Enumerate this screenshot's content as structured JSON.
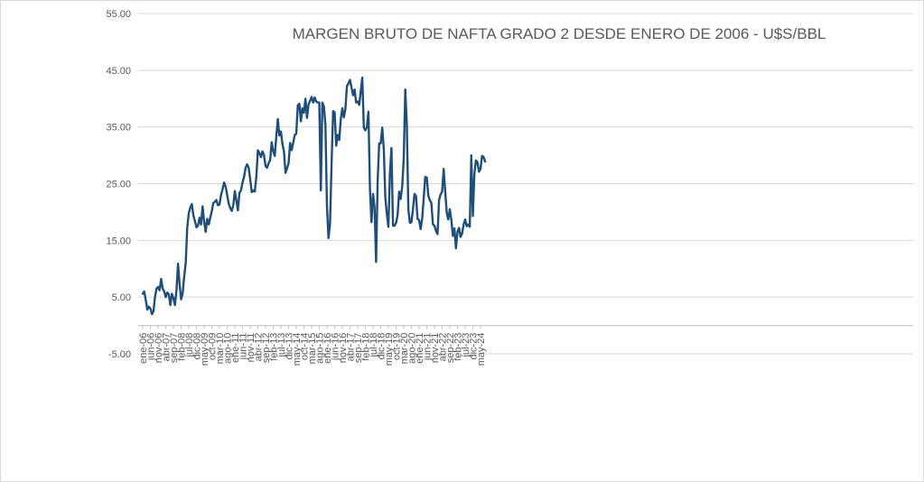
{
  "chart_data": {
    "type": "line",
    "title": "MARGEN BRUTO DE NAFTA GRADO 2 DESDE ENERO DE 2006 - U$S/BBL",
    "xlabel": "",
    "ylabel": "",
    "ylim": [
      -5,
      55
    ],
    "yticks": [
      "55.00",
      "45.00",
      "35.00",
      "25.00",
      "15.00",
      "5.00",
      "-5.00"
    ],
    "ytick_values": [
      55,
      45,
      35,
      25,
      15,
      5,
      -5
    ],
    "x_tick_labels": [
      "ene-06",
      "jun-06",
      "nov-06",
      "abr-07",
      "sep-07",
      "feb-08",
      "jul-08",
      "dic-08",
      "may-09",
      "oct-09",
      "mar-10",
      "ago-10",
      "ene-11",
      "jun-11",
      "nov-11",
      "abr-12",
      "sep-12",
      "feb-13",
      "jul-13",
      "dic-13",
      "may-14",
      "oct-14",
      "mar-15",
      "ago-15",
      "ene-16",
      "jun-16",
      "nov-16",
      "abr-17",
      "sep-17",
      "feb-18",
      "jul-18",
      "dic-18",
      "may-19",
      "oct-19",
      "mar-20",
      "ago-20",
      "ene-21",
      "jun-21",
      "nov-21",
      "abr-22",
      "sep-22",
      "feb-23",
      "jul-23",
      "dic-23",
      "may-24"
    ],
    "gridlines": true,
    "legend": "none",
    "series": [
      {
        "color": "#1f4e79",
        "start": "ene-06",
        "frequency": "monthly",
        "values": [
          5.6,
          6.0,
          4.5,
          2.8,
          3.3,
          3.0,
          2.0,
          2.5,
          5.0,
          6.5,
          6.8,
          6.2,
          8.2,
          6.5,
          6.0,
          5.0,
          5.8,
          5.5,
          3.6,
          5.6,
          4.8,
          3.6,
          6.2,
          10.9,
          7.3,
          4.6,
          5.6,
          8.6,
          11.0,
          17.2,
          19.8,
          20.8,
          21.4,
          19.4,
          18.4,
          17.3,
          17.6,
          19.0,
          17.8,
          21.0,
          18.3,
          16.5,
          18.8,
          17.8,
          19.0,
          20.2,
          21.6,
          21.8,
          22.1,
          21.2,
          21.3,
          23.0,
          24.0,
          25.2,
          24.5,
          23.0,
          21.5,
          20.7,
          20.2,
          21.2,
          23.7,
          22.0,
          20.3,
          23.4,
          23.8,
          25.2,
          26.2,
          27.8,
          28.4,
          27.8,
          25.8,
          23.5,
          23.8,
          23.6,
          26.2,
          30.9,
          30.4,
          29.7,
          30.7,
          30.0,
          28.1,
          27.8,
          28.6,
          29.2,
          32.3,
          30.7,
          29.9,
          33.3,
          36.4,
          33.5,
          34.2,
          32.0,
          30.7,
          26.9,
          27.7,
          28.6,
          32.2,
          30.9,
          32.2,
          33.6,
          33.8,
          38.8,
          39.1,
          36.0,
          38.3,
          37.5,
          40.0,
          36.6,
          39.0,
          39.6,
          40.3,
          39.3,
          40.2,
          39.5,
          39.3,
          39.3,
          23.8,
          39.3,
          38.6,
          35.4,
          21.0,
          15.4,
          18.0,
          28.5,
          37.8,
          37.6,
          31.7,
          33.6,
          32.7,
          36.4,
          38.3,
          36.7,
          38.2,
          42.2,
          42.7,
          43.3,
          41.9,
          40.6,
          41.6,
          39.3,
          39.5,
          38.9,
          41.3,
          43.7,
          34.9,
          34.4,
          35.0,
          37.7,
          24.0,
          18.2,
          23.2,
          20.8,
          11.2,
          25.4,
          32.1,
          32.1,
          34.9,
          31.2,
          22.6,
          19.6,
          17.4,
          26.8,
          31.3,
          17.6,
          17.6,
          18.1,
          19.5,
          23.6,
          22.3,
          24.5,
          29.4,
          41.6,
          35.5,
          20.5,
          18.1,
          18.2,
          20.5,
          23.2,
          22.8,
          18.8,
          18.6,
          17.0,
          18.8,
          22.4,
          26.2,
          26.1,
          22.9,
          22.1,
          21.6,
          17.8,
          17.6,
          16.7,
          16.1,
          22.1,
          23.1,
          23.6,
          27.6,
          23.6,
          19.9,
          18.7,
          20.5,
          18.6,
          15.8,
          17.1,
          13.6,
          16.5,
          17.2,
          15.6,
          16.2,
          17.8,
          18.7,
          17.5,
          17.8,
          17.4,
          30.0,
          19.3,
          26.7,
          29.1,
          28.8,
          27.1,
          27.6,
          29.9,
          29.7,
          28.9
        ]
      }
    ]
  }
}
